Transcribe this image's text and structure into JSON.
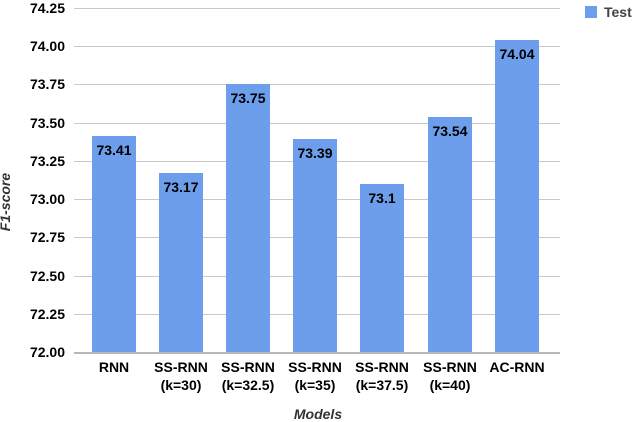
{
  "chart_data": {
    "type": "bar",
    "title": "",
    "xlabel": "Models",
    "ylabel": "F1-score",
    "legend": {
      "label": "Test",
      "position": "top-right",
      "swatch_color": "#6d9eeb"
    },
    "categories": [
      [
        "RNN"
      ],
      [
        "SS-RNN",
        "(k=30)"
      ],
      [
        "SS-RNN",
        "(k=32.5)"
      ],
      [
        "SS-RNN",
        "(k=35)"
      ],
      [
        "SS-RNN",
        "(k=37.5)"
      ],
      [
        "SS-RNN",
        "(k=40)"
      ],
      [
        "AC-RNN"
      ]
    ],
    "series": [
      {
        "name": "Test",
        "values": [
          73.41,
          73.17,
          73.75,
          73.39,
          73.1,
          73.54,
          74.04
        ]
      }
    ],
    "value_labels": [
      "73.41",
      "73.17",
      "73.75",
      "73.39",
      "73.1",
      "73.54",
      "74.04"
    ],
    "ylim": [
      72.0,
      74.25
    ],
    "ytick_step": 0.25,
    "yticks": [
      74.25,
      74.0,
      73.75,
      73.5,
      73.25,
      73.0,
      72.75,
      72.5,
      72.25,
      72.0
    ],
    "ytick_labels": [
      "74.25",
      "74.00",
      "73.75",
      "73.50",
      "73.25",
      "73.00",
      "72.75",
      "72.50",
      "72.25",
      "72.00"
    ],
    "grid": "horizontal",
    "colors": {
      "bar": "#6d9eeb",
      "gridline": "#c9c9c9",
      "axis_line": "#b7b7b7",
      "tick_text": "#000000",
      "axis_title_text": "#333333",
      "legend_text": "#434343",
      "value_label_text": "#000000",
      "background": "#ffffff"
    }
  }
}
